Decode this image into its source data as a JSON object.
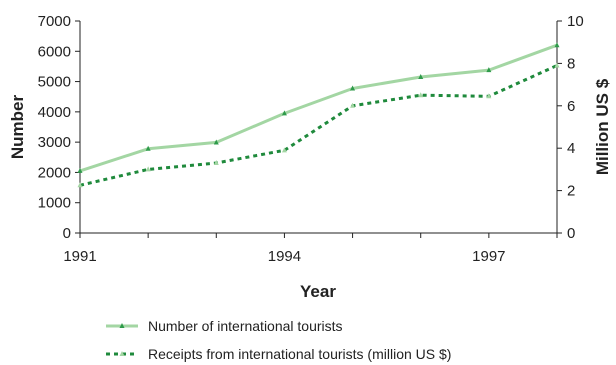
{
  "chart_data": {
    "type": "line",
    "x": [
      1991,
      1992,
      1993,
      1994,
      1995,
      1996,
      1997,
      1998
    ],
    "x_tick_labels": [
      "1991",
      "1994",
      "1997"
    ],
    "xlabel": "Year",
    "ylabel_left": "Number",
    "ylabel_right": "Million US $",
    "ylim_left": [
      0,
      7000
    ],
    "yticks_left": [
      "0",
      "1000",
      "2000",
      "3000",
      "4000",
      "5000",
      "6000",
      "7000"
    ],
    "ylim_right": [
      0,
      10
    ],
    "yticks_right": [
      "0",
      "2",
      "4",
      "6",
      "8",
      "10"
    ],
    "grid": false,
    "legend_position": "bottom",
    "series": [
      {
        "name": "Number of international tourists",
        "axis": "left",
        "style": "solid",
        "color": "#a3d6a3",
        "marker_color": "#2e9a4a",
        "values": [
          2050,
          2780,
          2990,
          3950,
          4770,
          5150,
          5380,
          6200
        ]
      },
      {
        "name": "Receipts from international tourists (million US $)",
        "axis": "right",
        "style": "dotted",
        "color": "#1f8a3c",
        "marker_color": "#a3d6a3",
        "values": [
          2.25,
          3.0,
          3.3,
          3.9,
          6.0,
          6.5,
          6.45,
          7.9
        ]
      }
    ]
  }
}
